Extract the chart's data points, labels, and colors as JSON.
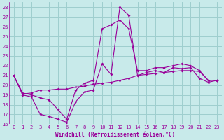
{
  "xlabel": "Windchill (Refroidissement éolien,°C)",
  "background_color": "#c8eaea",
  "grid_color": "#9ecece",
  "line_color": "#990099",
  "xlim": [
    -0.5,
    23.5
  ],
  "ylim": [
    16,
    28.5
  ],
  "xtick_labels": [
    "0",
    "1",
    "2",
    "3",
    "4",
    "5",
    "6",
    "7",
    "8",
    "9",
    "10",
    "11",
    "12",
    "13",
    "14",
    "15",
    "16",
    "17",
    "18",
    "19",
    "20",
    "21",
    "22",
    "23"
  ],
  "yticks": [
    16,
    17,
    18,
    19,
    20,
    21,
    22,
    23,
    24,
    25,
    26,
    27,
    28
  ],
  "series1": [
    21.0,
    19.0,
    18.8,
    17.0,
    16.8,
    16.5,
    16.2,
    18.3,
    19.3,
    19.5,
    22.2,
    21.1,
    28.0,
    27.2,
    21.0,
    21.3,
    21.5,
    21.3,
    21.8,
    21.7,
    21.8,
    20.7,
    20.3,
    20.5
  ],
  "series2": [
    21.0,
    19.2,
    19.0,
    18.7,
    18.5,
    17.5,
    16.5,
    19.5,
    20.2,
    20.5,
    25.8,
    26.2,
    26.7,
    25.8,
    21.5,
    21.5,
    21.8,
    21.8,
    22.0,
    22.2,
    22.0,
    21.5,
    20.5,
    20.5
  ],
  "series3": [
    21.0,
    19.1,
    19.2,
    19.5,
    19.5,
    19.6,
    19.6,
    19.8,
    19.9,
    20.1,
    20.2,
    20.3,
    20.5,
    20.7,
    21.0,
    21.1,
    21.2,
    21.3,
    21.4,
    21.5,
    21.5,
    21.4,
    20.5,
    20.5
  ],
  "label_fontsize": 5,
  "xlabel_fontsize": 5.5
}
